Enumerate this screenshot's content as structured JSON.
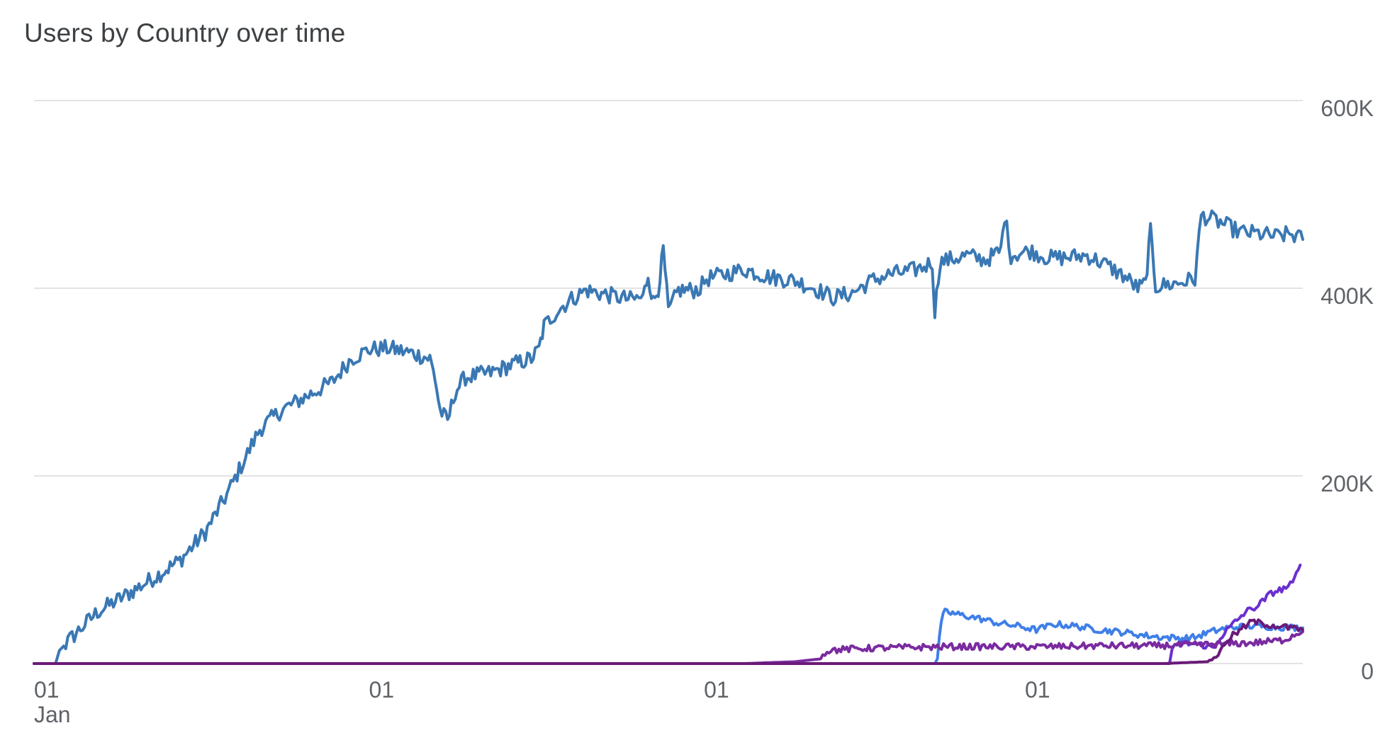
{
  "chart_data": {
    "type": "line",
    "title": "Users by Country over time",
    "xlabel": "",
    "ylabel": "",
    "ylim": [
      0,
      600000
    ],
    "y_ticks": [
      {
        "value": 0,
        "label": "0"
      },
      {
        "value": 200000,
        "label": "200K"
      },
      {
        "value": 400000,
        "label": "400K"
      },
      {
        "value": 600000,
        "label": "600K"
      }
    ],
    "x_range": [
      0,
      1000
    ],
    "x_ticks": [
      {
        "value": 0,
        "label": "01",
        "sublabel": "Jan"
      },
      {
        "value": 264,
        "label": "01",
        "sublabel": ""
      },
      {
        "value": 528,
        "label": "01",
        "sublabel": ""
      },
      {
        "value": 781,
        "label": "01",
        "sublabel": ""
      }
    ],
    "grid": true,
    "legend": "none",
    "series": [
      {
        "color": "#3a78b3",
        "points": [
          [
            0,
            0
          ],
          [
            17,
            0
          ],
          [
            20,
            14000
          ],
          [
            35,
            35000
          ],
          [
            50,
            55000
          ],
          [
            75,
            75000
          ],
          [
            95,
            92000
          ],
          [
            115,
            110000
          ],
          [
            135,
            140000
          ],
          [
            152,
            180000
          ],
          [
            165,
            215000
          ],
          [
            178,
            250000
          ],
          [
            195,
            270000
          ],
          [
            215,
            285000
          ],
          [
            235,
            300000
          ],
          [
            250,
            325000
          ],
          [
            265,
            335000
          ],
          [
            280,
            336000
          ],
          [
            300,
            330000
          ],
          [
            312,
            325000
          ],
          [
            316,
            305000
          ],
          [
            320,
            270000
          ],
          [
            326,
            258000
          ],
          [
            332,
            290000
          ],
          [
            340,
            305000
          ],
          [
            360,
            310000
          ],
          [
            380,
            320000
          ],
          [
            392,
            325000
          ],
          [
            398,
            335000
          ],
          [
            402,
            360000
          ],
          [
            412,
            375000
          ],
          [
            422,
            387000
          ],
          [
            435,
            398000
          ],
          [
            455,
            392000
          ],
          [
            470,
            388000
          ],
          [
            480,
            390000
          ],
          [
            484,
            415000
          ],
          [
            488,
            385000
          ],
          [
            492,
            400000
          ],
          [
            496,
            440000
          ],
          [
            500,
            375000
          ],
          [
            508,
            398000
          ],
          [
            520,
            398000
          ],
          [
            525,
            400000
          ],
          [
            530,
            410000
          ],
          [
            545,
            415000
          ],
          [
            560,
            420000
          ],
          [
            580,
            412000
          ],
          [
            600,
            408000
          ],
          [
            615,
            400000
          ],
          [
            630,
            390000
          ],
          [
            645,
            395000
          ],
          [
            660,
            408000
          ],
          [
            675,
            415000
          ],
          [
            690,
            418000
          ],
          [
            700,
            422000
          ],
          [
            708,
            428000
          ],
          [
            710,
            375000
          ],
          [
            714,
            428000
          ],
          [
            735,
            435000
          ],
          [
            750,
            430000
          ],
          [
            762,
            440000
          ],
          [
            765,
            478000
          ],
          [
            770,
            435000
          ],
          [
            785,
            440000
          ],
          [
            800,
            432000
          ],
          [
            815,
            433000
          ],
          [
            830,
            435000
          ],
          [
            845,
            425000
          ],
          [
            860,
            412000
          ],
          [
            870,
            400000
          ],
          [
            876,
            405000
          ],
          [
            880,
            460000
          ],
          [
            884,
            402000
          ],
          [
            900,
            405000
          ],
          [
            915,
            410000
          ],
          [
            920,
            478000
          ],
          [
            935,
            470000
          ],
          [
            950,
            460000
          ],
          [
            965,
            458000
          ],
          [
            980,
            455000
          ],
          [
            990,
            458000
          ],
          [
            1000,
            452000
          ]
        ]
      },
      {
        "color": "#3f7fe8",
        "points": [
          [
            0,
            0
          ],
          [
            400,
            0
          ],
          [
            565,
            0
          ],
          [
            710,
            0
          ],
          [
            712,
            5000
          ],
          [
            715,
            45000
          ],
          [
            718,
            55000
          ],
          [
            730,
            52000
          ],
          [
            745,
            48000
          ],
          [
            760,
            43000
          ],
          [
            775,
            40000
          ],
          [
            790,
            36000
          ],
          [
            805,
            42000
          ],
          [
            820,
            40000
          ],
          [
            840,
            36000
          ],
          [
            860,
            33000
          ],
          [
            875,
            30000
          ],
          [
            890,
            28000
          ],
          [
            905,
            27000
          ],
          [
            915,
            28000
          ],
          [
            925,
            33000
          ],
          [
            940,
            38000
          ],
          [
            960,
            40000
          ],
          [
            980,
            39000
          ],
          [
            1000,
            38000
          ]
        ]
      },
      {
        "color": "#6a2fd1",
        "points": [
          [
            0,
            0
          ],
          [
            400,
            0
          ],
          [
            510,
            0
          ],
          [
            600,
            0
          ],
          [
            880,
            0
          ],
          [
            895,
            0
          ],
          [
            897,
            15000
          ],
          [
            905,
            22000
          ],
          [
            920,
            20000
          ],
          [
            930,
            17000
          ],
          [
            935,
            28000
          ],
          [
            945,
            42000
          ],
          [
            955,
            55000
          ],
          [
            965,
            62000
          ],
          [
            975,
            75000
          ],
          [
            985,
            80000
          ],
          [
            992,
            85000
          ],
          [
            998,
            105000
          ],
          [
            1010,
            110000
          ],
          [
            1020,
            105000
          ],
          [
            1030,
            100000
          ],
          [
            1040,
            95000
          ]
        ]
      },
      {
        "color": "#7a2ba0",
        "points": [
          [
            0,
            0
          ],
          [
            560,
            0
          ],
          [
            600,
            2000
          ],
          [
            620,
            5000
          ],
          [
            625,
            14000
          ],
          [
            650,
            16000
          ],
          [
            680,
            17000
          ],
          [
            720,
            18000
          ],
          [
            760,
            18000
          ],
          [
            800,
            18000
          ],
          [
            840,
            19000
          ],
          [
            880,
            19000
          ],
          [
            920,
            20000
          ],
          [
            960,
            22000
          ],
          [
            985,
            25000
          ],
          [
            995,
            32000
          ],
          [
            1000,
            34000
          ]
        ]
      },
      {
        "color": "#6a1a78",
        "points": [
          [
            0,
            0
          ],
          [
            880,
            0
          ],
          [
            890,
            0
          ],
          [
            925,
            2000
          ],
          [
            935,
            12000
          ],
          [
            940,
            25000
          ],
          [
            950,
            35000
          ],
          [
            960,
            45000
          ],
          [
            970,
            42000
          ],
          [
            980,
            40000
          ],
          [
            990,
            38000
          ],
          [
            1000,
            36000
          ]
        ]
      }
    ]
  }
}
